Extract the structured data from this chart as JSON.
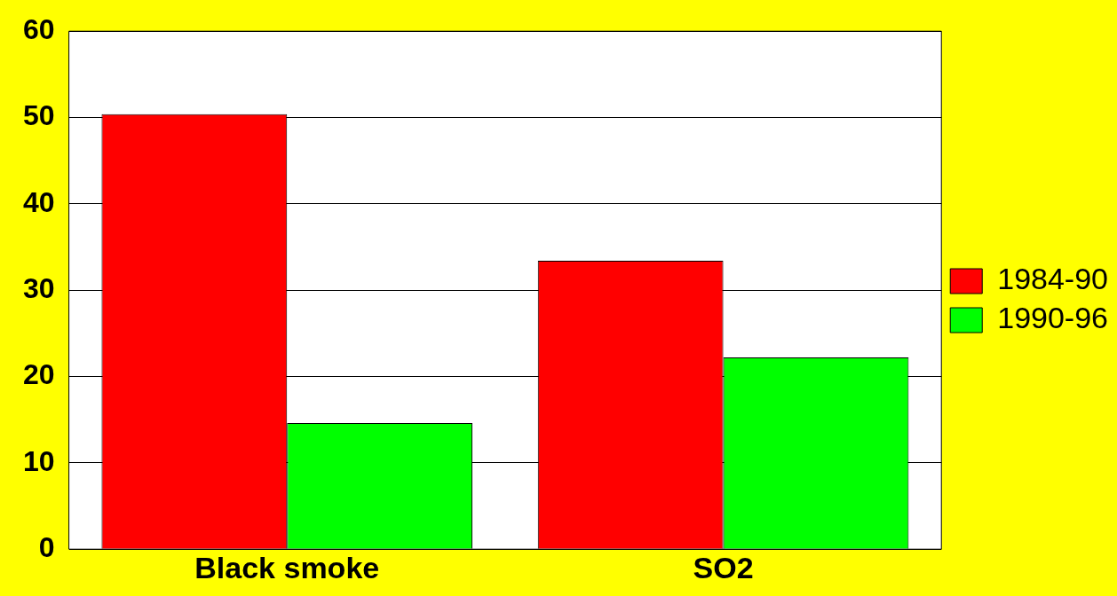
{
  "chart_data": {
    "type": "bar",
    "categories": [
      "Black smoke",
      "SO2"
    ],
    "series": [
      {
        "name": "1984-90",
        "color": "#ff0000",
        "values": [
          50.4,
          33.4
        ]
      },
      {
        "name": "1990-96",
        "color": "#00ff00",
        "values": [
          14.6,
          22.2
        ]
      }
    ],
    "ylim": [
      0,
      60
    ],
    "yticks": [
      0,
      10,
      20,
      30,
      40,
      50,
      60
    ],
    "grid": "y",
    "legend": "right"
  }
}
